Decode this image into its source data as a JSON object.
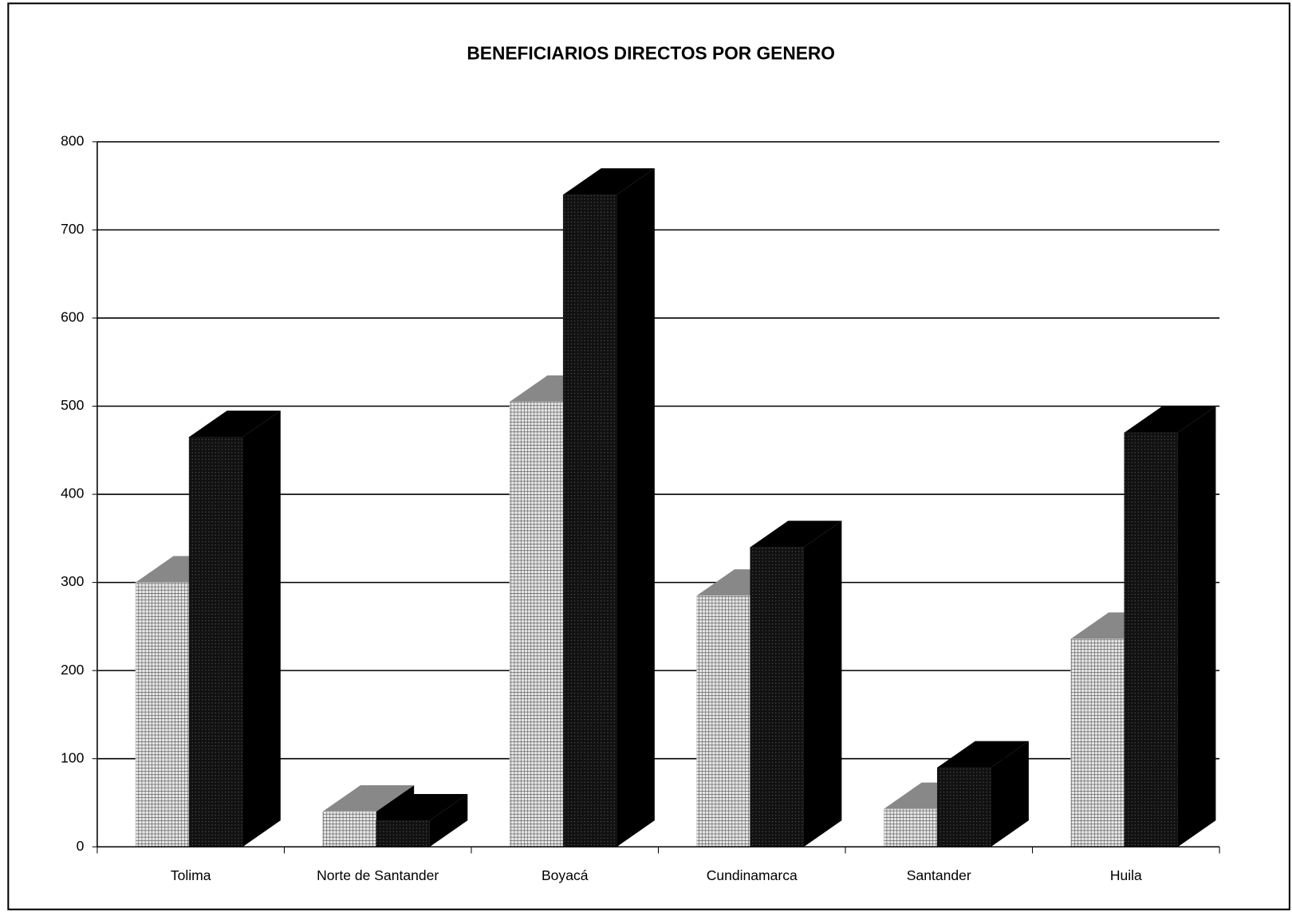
{
  "chart_data": {
    "type": "bar3d",
    "title": "BENEFICIARIOS DIRECTOS POR GENERO",
    "categories": [
      "Tolima",
      "Norte de Santander",
      "Boyacá",
      "Cundinamarca",
      "Santander",
      "Huila"
    ],
    "series": [
      {
        "color": "#c8c8c8",
        "values": [
          300,
          40,
          505,
          285,
          43,
          236
        ]
      },
      {
        "color": "#1a1a1a",
        "values": [
          465,
          30,
          740,
          340,
          90,
          470
        ]
      }
    ],
    "ylim": [
      0,
      800
    ],
    "yticks": [
      0,
      100,
      200,
      300,
      400,
      500,
      600,
      700,
      800
    ],
    "grid": true
  }
}
